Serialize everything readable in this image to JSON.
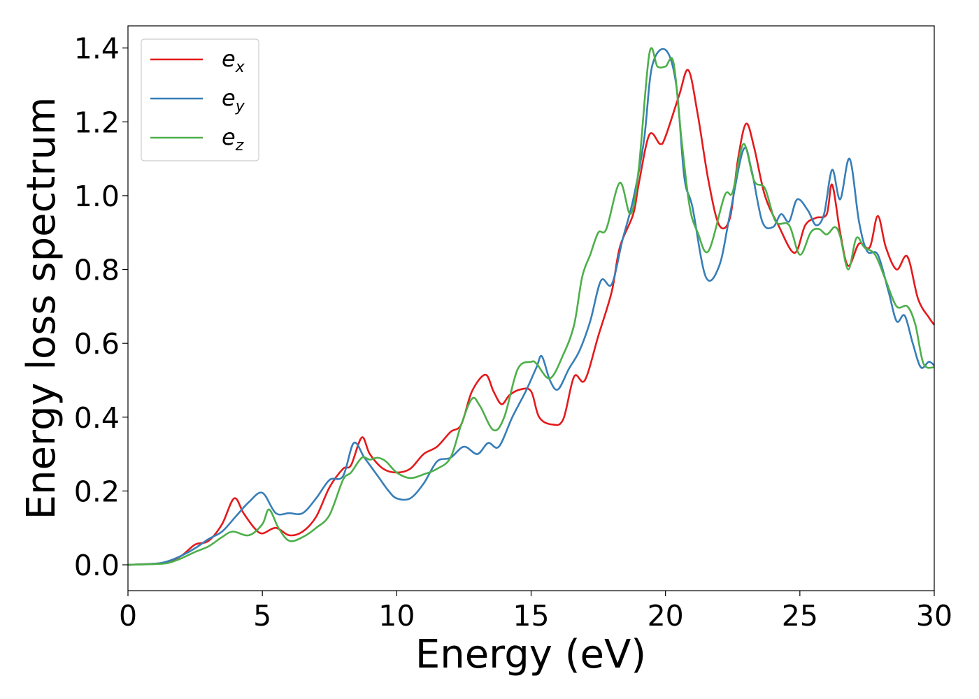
{
  "chart_data": {
    "type": "line",
    "title": "",
    "xlabel": "Energy (eV)",
    "ylabel": "Energy loss spectrum",
    "xlim": [
      0,
      30
    ],
    "ylim": [
      -0.07,
      1.46
    ],
    "x_ticks": [
      "0",
      "5",
      "10",
      "15",
      "20",
      "25",
      "30"
    ],
    "y_ticks": [
      "0.0",
      "0.2",
      "0.4",
      "0.6",
      "0.8",
      "1.0",
      "1.2",
      "1.4"
    ],
    "grid": false,
    "legend_position": "top-left",
    "series": [
      {
        "name": "e_x",
        "label_base": "e",
        "label_sub": "x",
        "color": "#e41a1c",
        "points": [
          [
            0,
            0
          ],
          [
            1,
            0.003
          ],
          [
            1.5,
            0.008
          ],
          [
            2,
            0.025
          ],
          [
            2.5,
            0.055
          ],
          [
            3,
            0.065
          ],
          [
            3.5,
            0.11
          ],
          [
            3.95,
            0.18
          ],
          [
            4.3,
            0.14
          ],
          [
            4.7,
            0.1
          ],
          [
            5,
            0.085
          ],
          [
            5.5,
            0.1
          ],
          [
            6,
            0.08
          ],
          [
            6.5,
            0.09
          ],
          [
            7,
            0.13
          ],
          [
            7.5,
            0.21
          ],
          [
            8,
            0.26
          ],
          [
            8.3,
            0.27
          ],
          [
            8.7,
            0.345
          ],
          [
            9,
            0.3
          ],
          [
            9.5,
            0.26
          ],
          [
            10,
            0.25
          ],
          [
            10.5,
            0.26
          ],
          [
            11,
            0.3
          ],
          [
            11.5,
            0.32
          ],
          [
            12,
            0.36
          ],
          [
            12.4,
            0.38
          ],
          [
            12.8,
            0.47
          ],
          [
            13.3,
            0.515
          ],
          [
            13.6,
            0.47
          ],
          [
            13.9,
            0.435
          ],
          [
            14.2,
            0.46
          ],
          [
            14.6,
            0.475
          ],
          [
            15,
            0.47
          ],
          [
            15.3,
            0.4
          ],
          [
            15.8,
            0.38
          ],
          [
            16.2,
            0.395
          ],
          [
            16.6,
            0.51
          ],
          [
            17,
            0.5
          ],
          [
            17.5,
            0.62
          ],
          [
            18,
            0.74
          ],
          [
            18.3,
            0.86
          ],
          [
            18.8,
            0.95
          ],
          [
            19,
            1.03
          ],
          [
            19.4,
            1.165
          ],
          [
            19.8,
            1.14
          ],
          [
            20,
            1.16
          ],
          [
            20.5,
            1.27
          ],
          [
            20.85,
            1.34
          ],
          [
            21.2,
            1.22
          ],
          [
            21.6,
            1.04
          ],
          [
            22,
            0.92
          ],
          [
            22.4,
            0.94
          ],
          [
            22.7,
            1.1
          ],
          [
            23,
            1.195
          ],
          [
            23.3,
            1.13
          ],
          [
            23.7,
            1.0
          ],
          [
            24.2,
            0.92
          ],
          [
            24.8,
            0.845
          ],
          [
            25.2,
            0.92
          ],
          [
            25.6,
            0.94
          ],
          [
            26,
            0.95
          ],
          [
            26.2,
            1.03
          ],
          [
            26.5,
            0.9
          ],
          [
            26.8,
            0.81
          ],
          [
            27.2,
            0.87
          ],
          [
            27.6,
            0.86
          ],
          [
            27.9,
            0.945
          ],
          [
            28.2,
            0.86
          ],
          [
            28.6,
            0.8
          ],
          [
            29,
            0.835
          ],
          [
            29.4,
            0.72
          ],
          [
            29.8,
            0.67
          ],
          [
            30,
            0.65
          ]
        ]
      },
      {
        "name": "e_y",
        "label_base": "e",
        "label_sub": "y",
        "color": "#377eb8",
        "points": [
          [
            0,
            0
          ],
          [
            1,
            0.003
          ],
          [
            1.5,
            0.01
          ],
          [
            2,
            0.025
          ],
          [
            2.5,
            0.045
          ],
          [
            3,
            0.07
          ],
          [
            3.5,
            0.09
          ],
          [
            4,
            0.13
          ],
          [
            4.5,
            0.17
          ],
          [
            5,
            0.195
          ],
          [
            5.5,
            0.14
          ],
          [
            6,
            0.14
          ],
          [
            6.5,
            0.14
          ],
          [
            7,
            0.18
          ],
          [
            7.5,
            0.23
          ],
          [
            8,
            0.24
          ],
          [
            8.4,
            0.33
          ],
          [
            8.8,
            0.29
          ],
          [
            9.3,
            0.24
          ],
          [
            9.7,
            0.2
          ],
          [
            10,
            0.18
          ],
          [
            10.5,
            0.18
          ],
          [
            11,
            0.22
          ],
          [
            11.5,
            0.28
          ],
          [
            12,
            0.29
          ],
          [
            12.5,
            0.32
          ],
          [
            13,
            0.3
          ],
          [
            13.4,
            0.33
          ],
          [
            13.8,
            0.32
          ],
          [
            14.3,
            0.4
          ],
          [
            14.8,
            0.47
          ],
          [
            15.2,
            0.535
          ],
          [
            15.4,
            0.565
          ],
          [
            15.7,
            0.5
          ],
          [
            16,
            0.475
          ],
          [
            16.4,
            0.53
          ],
          [
            16.8,
            0.58
          ],
          [
            17.2,
            0.66
          ],
          [
            17.6,
            0.77
          ],
          [
            18,
            0.76
          ],
          [
            18.4,
            0.88
          ],
          [
            18.8,
            0.99
          ],
          [
            19.2,
            1.15
          ],
          [
            19.5,
            1.35
          ],
          [
            20,
            1.395
          ],
          [
            20.4,
            1.3
          ],
          [
            20.7,
            1.05
          ],
          [
            21,
            0.97
          ],
          [
            21.5,
            0.78
          ],
          [
            22,
            0.81
          ],
          [
            22.4,
            0.95
          ],
          [
            22.9,
            1.125
          ],
          [
            23.2,
            1.07
          ],
          [
            23.6,
            0.93
          ],
          [
            24,
            0.915
          ],
          [
            24.3,
            0.95
          ],
          [
            24.6,
            0.93
          ],
          [
            24.9,
            0.99
          ],
          [
            25.3,
            0.96
          ],
          [
            25.6,
            0.92
          ],
          [
            25.9,
            0.95
          ],
          [
            26.2,
            1.07
          ],
          [
            26.5,
            0.99
          ],
          [
            26.85,
            1.1
          ],
          [
            27.2,
            0.93
          ],
          [
            27.5,
            0.85
          ],
          [
            27.9,
            0.84
          ],
          [
            28.3,
            0.74
          ],
          [
            28.6,
            0.66
          ],
          [
            28.9,
            0.675
          ],
          [
            29.2,
            0.6
          ],
          [
            29.5,
            0.535
          ],
          [
            29.8,
            0.55
          ],
          [
            30,
            0.54
          ]
        ]
      },
      {
        "name": "e_z",
        "label_base": "e",
        "label_sub": "z",
        "color": "#4daf4a",
        "points": [
          [
            0,
            0
          ],
          [
            1,
            0.002
          ],
          [
            1.5,
            0.005
          ],
          [
            2,
            0.018
          ],
          [
            2.5,
            0.035
          ],
          [
            3,
            0.05
          ],
          [
            3.5,
            0.075
          ],
          [
            3.9,
            0.09
          ],
          [
            4.5,
            0.08
          ],
          [
            5,
            0.11
          ],
          [
            5.25,
            0.15
          ],
          [
            5.6,
            0.1
          ],
          [
            6,
            0.065
          ],
          [
            6.5,
            0.075
          ],
          [
            7,
            0.1
          ],
          [
            7.5,
            0.135
          ],
          [
            8,
            0.23
          ],
          [
            8.3,
            0.25
          ],
          [
            8.7,
            0.29
          ],
          [
            9,
            0.285
          ],
          [
            9.3,
            0.29
          ],
          [
            9.6,
            0.28
          ],
          [
            10,
            0.25
          ],
          [
            10.5,
            0.235
          ],
          [
            11,
            0.245
          ],
          [
            11.5,
            0.26
          ],
          [
            12,
            0.29
          ],
          [
            12.4,
            0.38
          ],
          [
            12.8,
            0.45
          ],
          [
            13.1,
            0.43
          ],
          [
            13.6,
            0.365
          ],
          [
            14,
            0.4
          ],
          [
            14.5,
            0.53
          ],
          [
            15,
            0.55
          ],
          [
            15.2,
            0.545
          ],
          [
            15.7,
            0.505
          ],
          [
            16.2,
            0.57
          ],
          [
            16.6,
            0.65
          ],
          [
            16.9,
            0.78
          ],
          [
            17.2,
            0.84
          ],
          [
            17.5,
            0.9
          ],
          [
            17.8,
            0.91
          ],
          [
            18.3,
            1.035
          ],
          [
            18.7,
            0.95
          ],
          [
            19,
            1.07
          ],
          [
            19.4,
            1.385
          ],
          [
            19.7,
            1.35
          ],
          [
            20,
            1.35
          ],
          [
            20.3,
            1.36
          ],
          [
            20.6,
            1.15
          ],
          [
            20.9,
            0.97
          ],
          [
            21.2,
            0.9
          ],
          [
            21.6,
            0.85
          ],
          [
            22.2,
            1.0
          ],
          [
            22.5,
            1.01
          ],
          [
            22.9,
            1.14
          ],
          [
            23.3,
            1.04
          ],
          [
            23.7,
            1.02
          ],
          [
            24.1,
            0.93
          ],
          [
            24.6,
            0.92
          ],
          [
            25,
            0.84
          ],
          [
            25.4,
            0.9
          ],
          [
            25.7,
            0.91
          ],
          [
            26,
            0.895
          ],
          [
            26.3,
            0.915
          ],
          [
            26.5,
            0.89
          ],
          [
            26.8,
            0.8
          ],
          [
            27.1,
            0.885
          ],
          [
            27.4,
            0.86
          ],
          [
            27.8,
            0.84
          ],
          [
            28.2,
            0.77
          ],
          [
            28.6,
            0.7
          ],
          [
            29,
            0.7
          ],
          [
            29.3,
            0.65
          ],
          [
            29.6,
            0.545
          ],
          [
            30,
            0.535
          ]
        ]
      }
    ]
  }
}
